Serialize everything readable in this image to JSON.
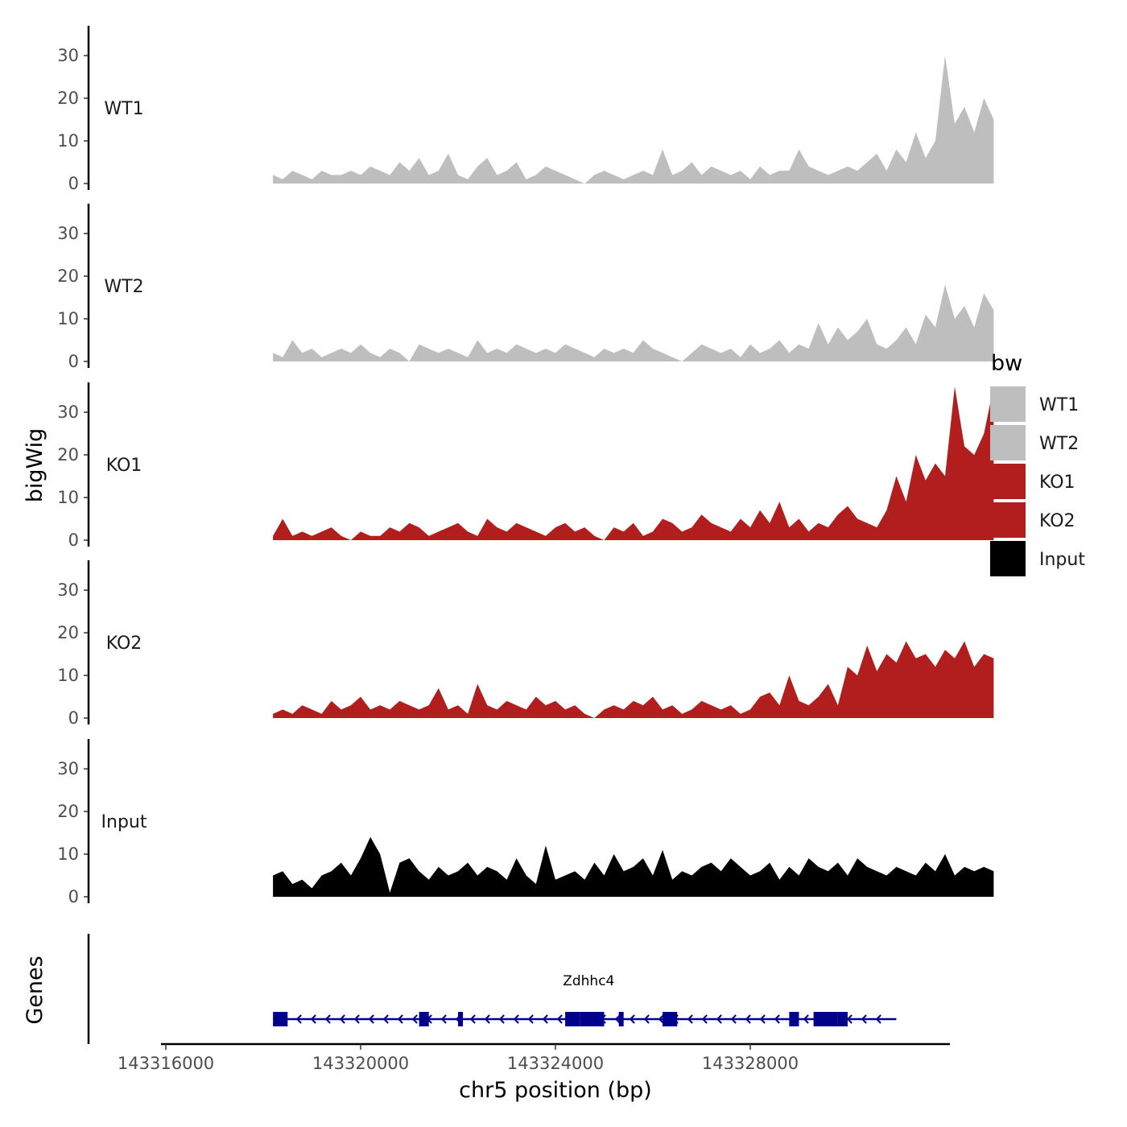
{
  "chart_data": {
    "type": "area",
    "title": "",
    "xlabel": "chr5 position (bp)",
    "ylabel": "bigWig",
    "genes_ylabel": "Genes",
    "xlim": [
      143315900,
      143332100
    ],
    "ylim": [
      0,
      37
    ],
    "x_ticks": [
      143316000,
      143320000,
      143324000,
      143328000
    ],
    "x_tick_labels": [
      "143316000",
      "143320000",
      "143324000",
      "143328000"
    ],
    "y_ticks": [
      0,
      10,
      20,
      30
    ],
    "y_tick_labels": [
      "0",
      "10",
      "20",
      "30"
    ],
    "legend": {
      "title": "bw",
      "placement": "right",
      "entries": [
        {
          "label": "WT1",
          "color": "#bebebe"
        },
        {
          "label": "WT2",
          "color": "#bebebe"
        },
        {
          "label": "KO1",
          "color": "#b21e1e"
        },
        {
          "label": "KO2",
          "color": "#b21e1e"
        },
        {
          "label": "Input",
          "color": "#000000"
        }
      ]
    },
    "series": [
      {
        "name": "WT1",
        "color": "#bebebe",
        "x": [
          143318200,
          143318400,
          143318600,
          143318800,
          143319000,
          143319200,
          143319400,
          143319600,
          143319800,
          143320000,
          143320200,
          143320400,
          143320600,
          143320800,
          143321000,
          143321200,
          143321400,
          143321600,
          143321800,
          143322000,
          143322200,
          143322400,
          143322600,
          143322800,
          143323000,
          143323200,
          143323400,
          143323600,
          143323800,
          143324000,
          143324200,
          143324400,
          143324600,
          143324800,
          143325000,
          143325200,
          143325400,
          143325600,
          143325800,
          143326000,
          143326200,
          143326400,
          143326600,
          143326800,
          143327000,
          143327200,
          143327400,
          143327600,
          143327800,
          143328000,
          143328200,
          143328400,
          143328600,
          143328800,
          143329000,
          143329200,
          143329400,
          143329600,
          143329800,
          143330000,
          143330200,
          143330400,
          143330600,
          143330800,
          143331000,
          143331200,
          143331400,
          143331600,
          143331800,
          143332000,
          143332200,
          143332400,
          143332600,
          143332800,
          143333000
        ],
        "values": [
          2,
          1,
          3,
          2,
          1,
          3,
          2,
          2,
          3,
          2,
          4,
          3,
          2,
          5,
          3,
          6,
          2,
          3,
          7,
          2,
          1,
          4,
          6,
          2,
          3,
          5,
          1,
          2,
          4,
          3,
          2,
          1,
          0,
          2,
          3,
          2,
          1,
          2,
          3,
          2,
          8,
          2,
          3,
          5,
          2,
          4,
          3,
          2,
          3,
          1,
          4,
          2,
          3,
          3,
          8,
          4,
          3,
          2,
          3,
          4,
          3,
          5,
          7,
          3,
          8,
          5,
          12,
          6,
          10,
          30,
          14,
          18,
          12,
          20,
          15
        ]
      },
      {
        "name": "WT2",
        "color": "#bebebe",
        "x": [
          143318200,
          143318400,
          143318600,
          143318800,
          143319000,
          143319200,
          143319400,
          143319600,
          143319800,
          143320000,
          143320200,
          143320400,
          143320600,
          143320800,
          143321000,
          143321200,
          143321400,
          143321600,
          143321800,
          143322000,
          143322200,
          143322400,
          143322600,
          143322800,
          143323000,
          143323200,
          143323400,
          143323600,
          143323800,
          143324000,
          143324200,
          143324400,
          143324600,
          143324800,
          143325000,
          143325200,
          143325400,
          143325600,
          143325800,
          143326000,
          143326200,
          143326400,
          143326600,
          143326800,
          143327000,
          143327200,
          143327400,
          143327600,
          143327800,
          143328000,
          143328200,
          143328400,
          143328600,
          143328800,
          143329000,
          143329200,
          143329400,
          143329600,
          143329800,
          143330000,
          143330200,
          143330400,
          143330600,
          143330800,
          143331000,
          143331200,
          143331400,
          143331600,
          143331800,
          143332000,
          143332200,
          143332400,
          143332600,
          143332800,
          143333000
        ],
        "values": [
          2,
          1,
          5,
          2,
          3,
          1,
          2,
          3,
          2,
          4,
          2,
          1,
          3,
          2,
          0,
          4,
          3,
          2,
          3,
          2,
          1,
          5,
          2,
          3,
          2,
          4,
          3,
          2,
          3,
          2,
          4,
          3,
          2,
          1,
          3,
          2,
          3,
          2,
          5,
          3,
          2,
          1,
          0,
          2,
          4,
          3,
          2,
          3,
          1,
          4,
          2,
          3,
          5,
          2,
          4,
          3,
          9,
          4,
          8,
          5,
          7,
          10,
          4,
          3,
          5,
          8,
          4,
          11,
          8,
          18,
          10,
          13,
          8,
          16,
          12
        ]
      },
      {
        "name": "KO1",
        "color": "#b21e1e",
        "x": [
          143318200,
          143318400,
          143318600,
          143318800,
          143319000,
          143319200,
          143319400,
          143319600,
          143319800,
          143320000,
          143320200,
          143320400,
          143320600,
          143320800,
          143321000,
          143321200,
          143321400,
          143321600,
          143321800,
          143322000,
          143322200,
          143322400,
          143322600,
          143322800,
          143323000,
          143323200,
          143323400,
          143323600,
          143323800,
          143324000,
          143324200,
          143324400,
          143324600,
          143324800,
          143325000,
          143325200,
          143325400,
          143325600,
          143325800,
          143326000,
          143326200,
          143326400,
          143326600,
          143326800,
          143327000,
          143327200,
          143327400,
          143327600,
          143327800,
          143328000,
          143328200,
          143328400,
          143328600,
          143328800,
          143329000,
          143329200,
          143329400,
          143329600,
          143329800,
          143330000,
          143330200,
          143330400,
          143330600,
          143330800,
          143331000,
          143331200,
          143331400,
          143331600,
          143331800,
          143332000,
          143332200,
          143332400,
          143332600,
          143332800,
          143333000
        ],
        "values": [
          1,
          5,
          1,
          2,
          1,
          2,
          3,
          1,
          0,
          2,
          1,
          1,
          3,
          2,
          4,
          3,
          1,
          2,
          3,
          4,
          2,
          1,
          5,
          3,
          2,
          4,
          3,
          2,
          1,
          3,
          4,
          2,
          3,
          1,
          0,
          3,
          2,
          4,
          1,
          2,
          5,
          4,
          2,
          3,
          6,
          4,
          3,
          2,
          5,
          3,
          7,
          4,
          9,
          3,
          5,
          2,
          4,
          3,
          6,
          8,
          5,
          4,
          3,
          7,
          15,
          9,
          20,
          14,
          18,
          15,
          36,
          22,
          20,
          25,
          36
        ]
      },
      {
        "name": "KO2",
        "color": "#b21e1e",
        "x": [
          143318200,
          143318400,
          143318600,
          143318800,
          143319000,
          143319200,
          143319400,
          143319600,
          143319800,
          143320000,
          143320200,
          143320400,
          143320600,
          143320800,
          143321000,
          143321200,
          143321400,
          143321600,
          143321800,
          143322000,
          143322200,
          143322400,
          143322600,
          143322800,
          143323000,
          143323200,
          143323400,
          143323600,
          143323800,
          143324000,
          143324200,
          143324400,
          143324600,
          143324800,
          143325000,
          143325200,
          143325400,
          143325600,
          143325800,
          143326000,
          143326200,
          143326400,
          143326600,
          143326800,
          143327000,
          143327200,
          143327400,
          143327600,
          143327800,
          143328000,
          143328200,
          143328400,
          143328600,
          143328800,
          143329000,
          143329200,
          143329400,
          143329600,
          143329800,
          143330000,
          143330200,
          143330400,
          143330600,
          143330800,
          143331000,
          143331200,
          143331400,
          143331600,
          143331800,
          143332000,
          143332200,
          143332400,
          143332600,
          143332800,
          143333000
        ],
        "values": [
          1,
          2,
          1,
          3,
          2,
          1,
          4,
          2,
          3,
          5,
          2,
          3,
          2,
          4,
          3,
          2,
          3,
          7,
          2,
          3,
          1,
          8,
          3,
          2,
          4,
          3,
          2,
          5,
          3,
          4,
          2,
          3,
          1,
          0,
          2,
          3,
          2,
          4,
          3,
          5,
          2,
          3,
          1,
          2,
          4,
          3,
          2,
          3,
          1,
          2,
          5,
          6,
          3,
          10,
          4,
          3,
          5,
          8,
          3,
          12,
          10,
          17,
          11,
          15,
          13,
          18,
          14,
          15,
          12,
          16,
          14,
          18,
          12,
          15,
          14
        ]
      },
      {
        "name": "Input",
        "color": "#000000",
        "x": [
          143318200,
          143318400,
          143318600,
          143318800,
          143319000,
          143319200,
          143319400,
          143319600,
          143319800,
          143320000,
          143320200,
          143320400,
          143320600,
          143320800,
          143321000,
          143321200,
          143321400,
          143321600,
          143321800,
          143322000,
          143322200,
          143322400,
          143322600,
          143322800,
          143323000,
          143323200,
          143323400,
          143323600,
          143323800,
          143324000,
          143324200,
          143324400,
          143324600,
          143324800,
          143325000,
          143325200,
          143325400,
          143325600,
          143325800,
          143326000,
          143326200,
          143326400,
          143326600,
          143326800,
          143327000,
          143327200,
          143327400,
          143327600,
          143327800,
          143328000,
          143328200,
          143328400,
          143328600,
          143328800,
          143329000,
          143329200,
          143329400,
          143329600,
          143329800,
          143330000,
          143330200,
          143330400,
          143330600,
          143330800,
          143331000,
          143331200,
          143331400,
          143331600,
          143331800,
          143332000,
          143332200,
          143332400,
          143332600,
          143332800,
          143333000
        ],
        "values": [
          5,
          6,
          3,
          4,
          2,
          5,
          6,
          8,
          5,
          9,
          14,
          10,
          1,
          8,
          9,
          6,
          4,
          7,
          5,
          6,
          8,
          5,
          7,
          6,
          4,
          9,
          5,
          3,
          12,
          4,
          5,
          6,
          4,
          8,
          5,
          10,
          6,
          7,
          9,
          5,
          11,
          4,
          6,
          5,
          7,
          8,
          6,
          9,
          7,
          5,
          6,
          8,
          4,
          7,
          5,
          9,
          7,
          6,
          8,
          5,
          9,
          7,
          6,
          5,
          7,
          6,
          5,
          8,
          6,
          10,
          5,
          7,
          6,
          7,
          6
        ]
      }
    ],
    "genes": {
      "name": "Zdhhc4",
      "strand": "-",
      "start": 143318200,
      "end": 143331000,
      "exons": [
        {
          "start": 143318200,
          "end": 143318500
        },
        {
          "start": 143321200,
          "end": 143321400
        },
        {
          "start": 143322000,
          "end": 143322100
        },
        {
          "start": 143324200,
          "end": 143324500
        },
        {
          "start": 143324500,
          "end": 143325000
        },
        {
          "start": 143325300,
          "end": 143325400
        },
        {
          "start": 143326200,
          "end": 143326500
        },
        {
          "start": 143328800,
          "end": 143329000
        },
        {
          "start": 143329300,
          "end": 143329800
        },
        {
          "start": 143329800,
          "end": 143330000
        }
      ],
      "color": "#00008b"
    }
  }
}
